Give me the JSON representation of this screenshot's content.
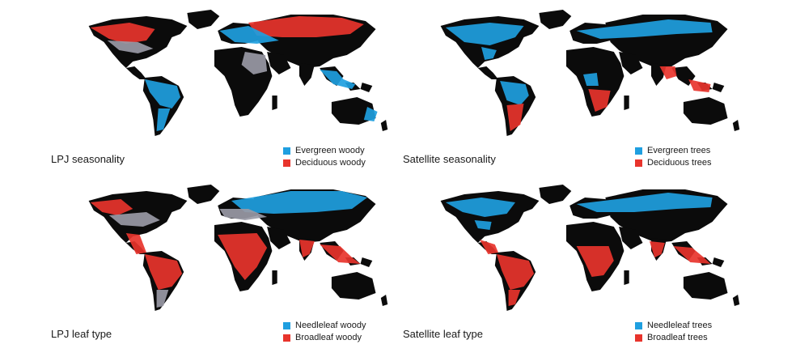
{
  "colors": {
    "blue": "#1f9fe0",
    "red": "#e8342c",
    "black": "#0b0b0b",
    "mix": "#9a9aa6"
  },
  "panels": [
    {
      "title": "LPJ seasonality",
      "scheme": "lpj-season",
      "legend": [
        {
          "label": "Evergreen woody",
          "color": "#1f9fe0"
        },
        {
          "label": "Deciduous woody",
          "color": "#e8342c"
        }
      ]
    },
    {
      "title": "Satellite seasonality",
      "scheme": "sat-season",
      "legend": [
        {
          "label": "Evergreen trees",
          "color": "#1f9fe0"
        },
        {
          "label": "Deciduous trees",
          "color": "#e8342c"
        }
      ]
    },
    {
      "title": "LPJ leaf type",
      "scheme": "lpj-leaf",
      "legend": [
        {
          "label": "Needleleaf woody",
          "color": "#1f9fe0"
        },
        {
          "label": "Broadleaf woody",
          "color": "#e8342c"
        }
      ]
    },
    {
      "title": "Satellite leaf type",
      "scheme": "sat-leaf",
      "legend": [
        {
          "label": "Needleleaf trees",
          "color": "#1f9fe0"
        },
        {
          "label": "Broadleaf trees",
          "color": "#e8342c"
        }
      ]
    }
  ]
}
